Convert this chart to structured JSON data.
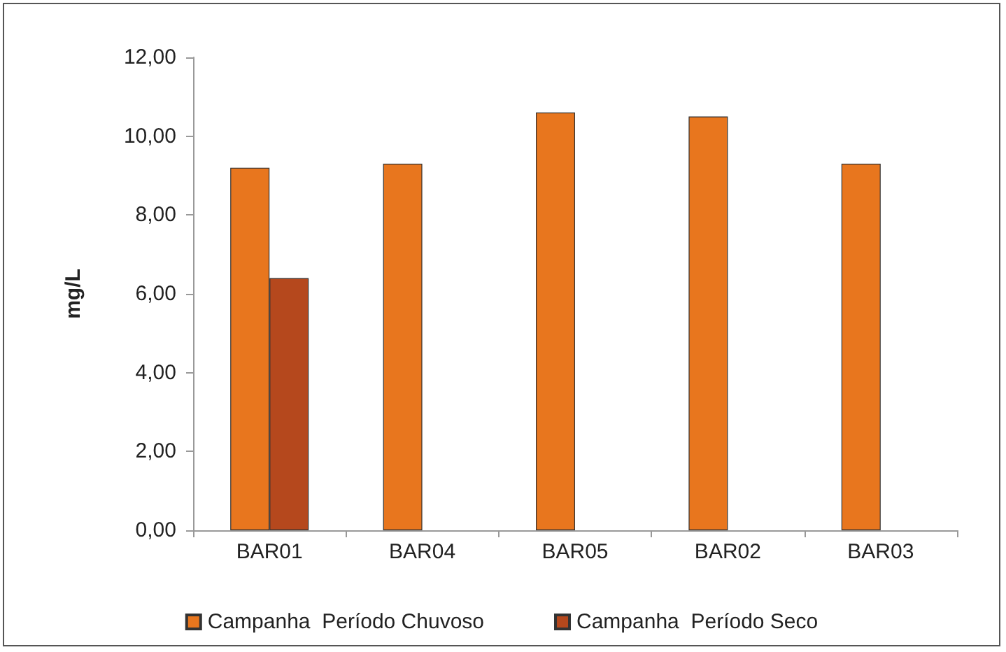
{
  "chart_data": {
    "type": "bar",
    "ylabel": "mg/L",
    "categories": [
      "BAR01",
      "BAR04",
      "BAR05",
      "BAR02",
      "BAR03"
    ],
    "series": [
      {
        "name": "Campanha  Período Chuvoso",
        "color": "#e8761e",
        "values": [
          9.2,
          9.3,
          10.6,
          10.5,
          9.3
        ]
      },
      {
        "name": "Campanha  Período Seco",
        "color": "#b5481d",
        "values": [
          6.4,
          null,
          null,
          null,
          null
        ]
      }
    ],
    "ylim": [
      0,
      12
    ],
    "yticks": [
      {
        "value": 0,
        "label": "0,00"
      },
      {
        "value": 2,
        "label": "2,00"
      },
      {
        "value": 4,
        "label": "4,00"
      },
      {
        "value": 6,
        "label": "6,00"
      },
      {
        "value": 8,
        "label": "8,00"
      },
      {
        "value": 10,
        "label": "10,00"
      },
      {
        "value": 12,
        "label": "12,00"
      }
    ],
    "grid": false,
    "legend": "bottom"
  }
}
